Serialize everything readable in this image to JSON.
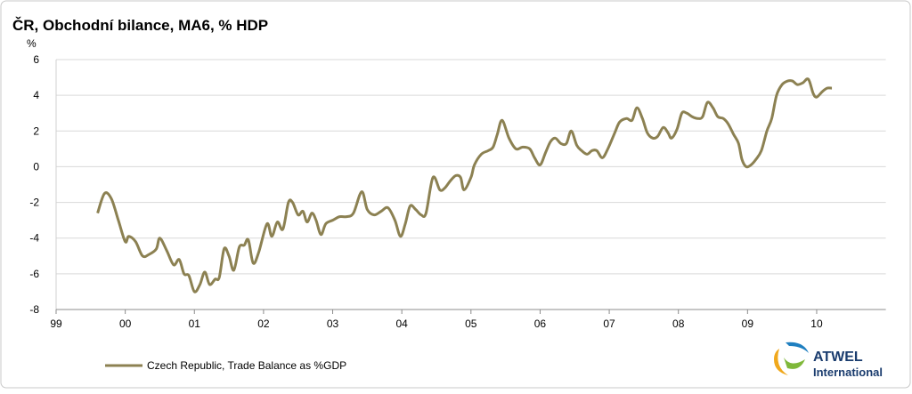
{
  "chart_data": {
    "type": "line",
    "title": "ČR, Obchodní bilance, MA6, % HDP",
    "ylabel": "%",
    "x": [
      1999.6,
      1999.7,
      1999.8,
      1999.9,
      2000.0,
      2000.05,
      2000.15,
      2000.25,
      2000.35,
      2000.45,
      2000.5,
      2000.6,
      2000.7,
      2000.78,
      2000.85,
      2000.92,
      2001.0,
      2001.08,
      2001.15,
      2001.22,
      2001.3,
      2001.36,
      2001.43,
      2001.5,
      2001.57,
      2001.65,
      2001.72,
      2001.78,
      2001.85,
      2001.93,
      2002.05,
      2002.12,
      2002.2,
      2002.28,
      2002.36,
      2002.42,
      2002.5,
      2002.57,
      2002.63,
      2002.7,
      2002.76,
      2002.83,
      2002.9,
      2003.0,
      2003.1,
      2003.2,
      2003.3,
      2003.42,
      2003.5,
      2003.6,
      2003.7,
      2003.8,
      2003.9,
      2003.98,
      2004.05,
      2004.12,
      2004.2,
      2004.28,
      2004.35,
      2004.45,
      2004.55,
      2004.62,
      2004.7,
      2004.78,
      2004.85,
      2004.9,
      2005.0,
      2005.05,
      2005.15,
      2005.25,
      2005.32,
      2005.38,
      2005.45,
      2005.55,
      2005.65,
      2005.75,
      2005.85,
      2005.92,
      2006.0,
      2006.08,
      2006.15,
      2006.22,
      2006.3,
      2006.38,
      2006.45,
      2006.53,
      2006.6,
      2006.68,
      2006.75,
      2006.82,
      2006.9,
      2006.98,
      2007.08,
      2007.15,
      2007.25,
      2007.33,
      2007.4,
      2007.48,
      2007.55,
      2007.63,
      2007.7,
      2007.78,
      2007.85,
      2007.9,
      2007.98,
      2008.05,
      2008.12,
      2008.2,
      2008.28,
      2008.35,
      2008.42,
      2008.5,
      2008.57,
      2008.65,
      2008.72,
      2008.8,
      2008.87,
      2008.92,
      2008.98,
      2009.05,
      2009.12,
      2009.2,
      2009.28,
      2009.35,
      2009.42,
      2009.5,
      2009.58,
      2009.65,
      2009.72,
      2009.8,
      2009.88,
      2009.95,
      2010.0,
      2010.08,
      2010.15,
      2010.22
    ],
    "series": [
      {
        "name": "Czech Republic, Trade Balance as %GDP",
        "color": "#8c8152",
        "values": [
          -2.6,
          -1.5,
          -1.8,
          -3.0,
          -4.2,
          -3.9,
          -4.2,
          -5.0,
          -4.9,
          -4.6,
          -4.0,
          -4.7,
          -5.5,
          -5.2,
          -6.0,
          -6.1,
          -7.0,
          -6.6,
          -5.9,
          -6.6,
          -6.3,
          -6.2,
          -4.6,
          -5.0,
          -5.8,
          -4.5,
          -4.4,
          -4.1,
          -5.4,
          -4.8,
          -3.2,
          -3.9,
          -3.1,
          -3.5,
          -2.0,
          -2.0,
          -2.7,
          -2.5,
          -3.1,
          -2.6,
          -3.0,
          -3.8,
          -3.2,
          -3.0,
          -2.8,
          -2.8,
          -2.6,
          -1.4,
          -2.4,
          -2.7,
          -2.5,
          -2.3,
          -3.0,
          -3.9,
          -3.2,
          -2.2,
          -2.4,
          -2.7,
          -2.6,
          -0.6,
          -1.3,
          -1.2,
          -0.8,
          -0.5,
          -0.6,
          -1.3,
          -0.6,
          0.1,
          0.7,
          0.9,
          1.1,
          1.8,
          2.6,
          1.6,
          1.0,
          1.1,
          1.0,
          0.5,
          0.1,
          0.8,
          1.4,
          1.6,
          1.3,
          1.3,
          2.0,
          1.2,
          0.9,
          0.7,
          0.9,
          0.9,
          0.5,
          1.0,
          1.9,
          2.5,
          2.7,
          2.6,
          3.3,
          2.7,
          1.9,
          1.6,
          1.7,
          2.2,
          1.9,
          1.6,
          2.1,
          3.0,
          3.0,
          2.8,
          2.7,
          2.8,
          3.6,
          3.3,
          2.8,
          2.7,
          2.4,
          1.8,
          1.3,
          0.4,
          0.0,
          0.1,
          0.4,
          0.9,
          2.0,
          2.7,
          4.0,
          4.6,
          4.8,
          4.8,
          4.6,
          4.7,
          4.9,
          4.1,
          3.9,
          4.2,
          4.4,
          4.4
        ]
      }
    ],
    "xlim": [
      1999,
      2011
    ],
    "xticks": [
      {
        "value": 1999,
        "label": "99"
      },
      {
        "value": 2000,
        "label": "00"
      },
      {
        "value": 2001,
        "label": "01"
      },
      {
        "value": 2002,
        "label": "02"
      },
      {
        "value": 2003,
        "label": "03"
      },
      {
        "value": 2004,
        "label": "04"
      },
      {
        "value": 2005,
        "label": "05"
      },
      {
        "value": 2006,
        "label": "06"
      },
      {
        "value": 2007,
        "label": "07"
      },
      {
        "value": 2008,
        "label": "08"
      },
      {
        "value": 2009,
        "label": "09"
      },
      {
        "value": 2010,
        "label": "10"
      }
    ],
    "ylim": [
      -8,
      6
    ],
    "yticks": [
      6,
      4,
      2,
      0,
      -2,
      -4,
      -6,
      -8
    ],
    "grid": true,
    "legend": "bottom-left"
  },
  "logo": {
    "line1": "ATWEL",
    "line2": "International"
  }
}
